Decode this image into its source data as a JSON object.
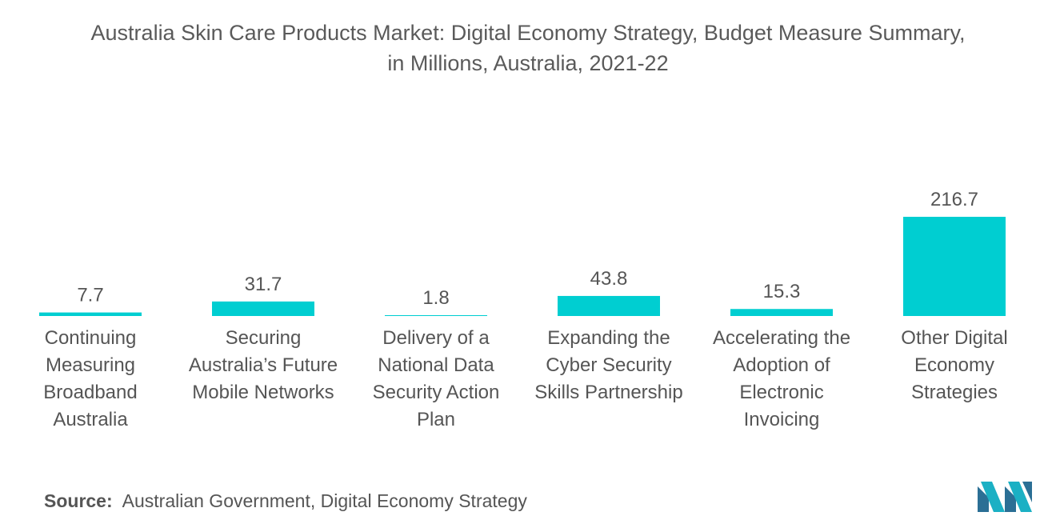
{
  "title_line1": "Australia Skin Care Products Market: Digital Economy Strategy, Budget Measure Summary,",
  "title_line2": "in Millions, Australia, 2021-22",
  "source_label": "Source:",
  "source_text": "Australian Government, Digital Economy Strategy",
  "colors": {
    "bar": "#00CED1",
    "text": "#555555"
  },
  "logo_icon": "mordor-intelligence-logo",
  "chart_data": {
    "type": "bar",
    "categories": [
      [
        "Continuing",
        "Measuring",
        "Broadband",
        "Australia"
      ],
      [
        "Securing",
        "Australia’s Future",
        "Mobile Networks"
      ],
      [
        "Delivery of a",
        "National Data",
        "Security Action",
        "Plan"
      ],
      [
        "Expanding the",
        "Cyber Security",
        "Skills Partnership"
      ],
      [
        "Accelerating the",
        "Adoption of",
        "Electronic",
        "Invoicing"
      ],
      [
        "Other Digital",
        "Economy",
        "Strategies"
      ]
    ],
    "values": [
      7.7,
      31.7,
      1.8,
      43.8,
      15.3,
      216.7
    ],
    "value_labels": [
      "7.7",
      "31.7",
      "1.8",
      "43.8",
      "15.3",
      "216.7"
    ],
    "ylim": [
      0,
      216.7
    ],
    "grid": false,
    "legend": "none"
  }
}
